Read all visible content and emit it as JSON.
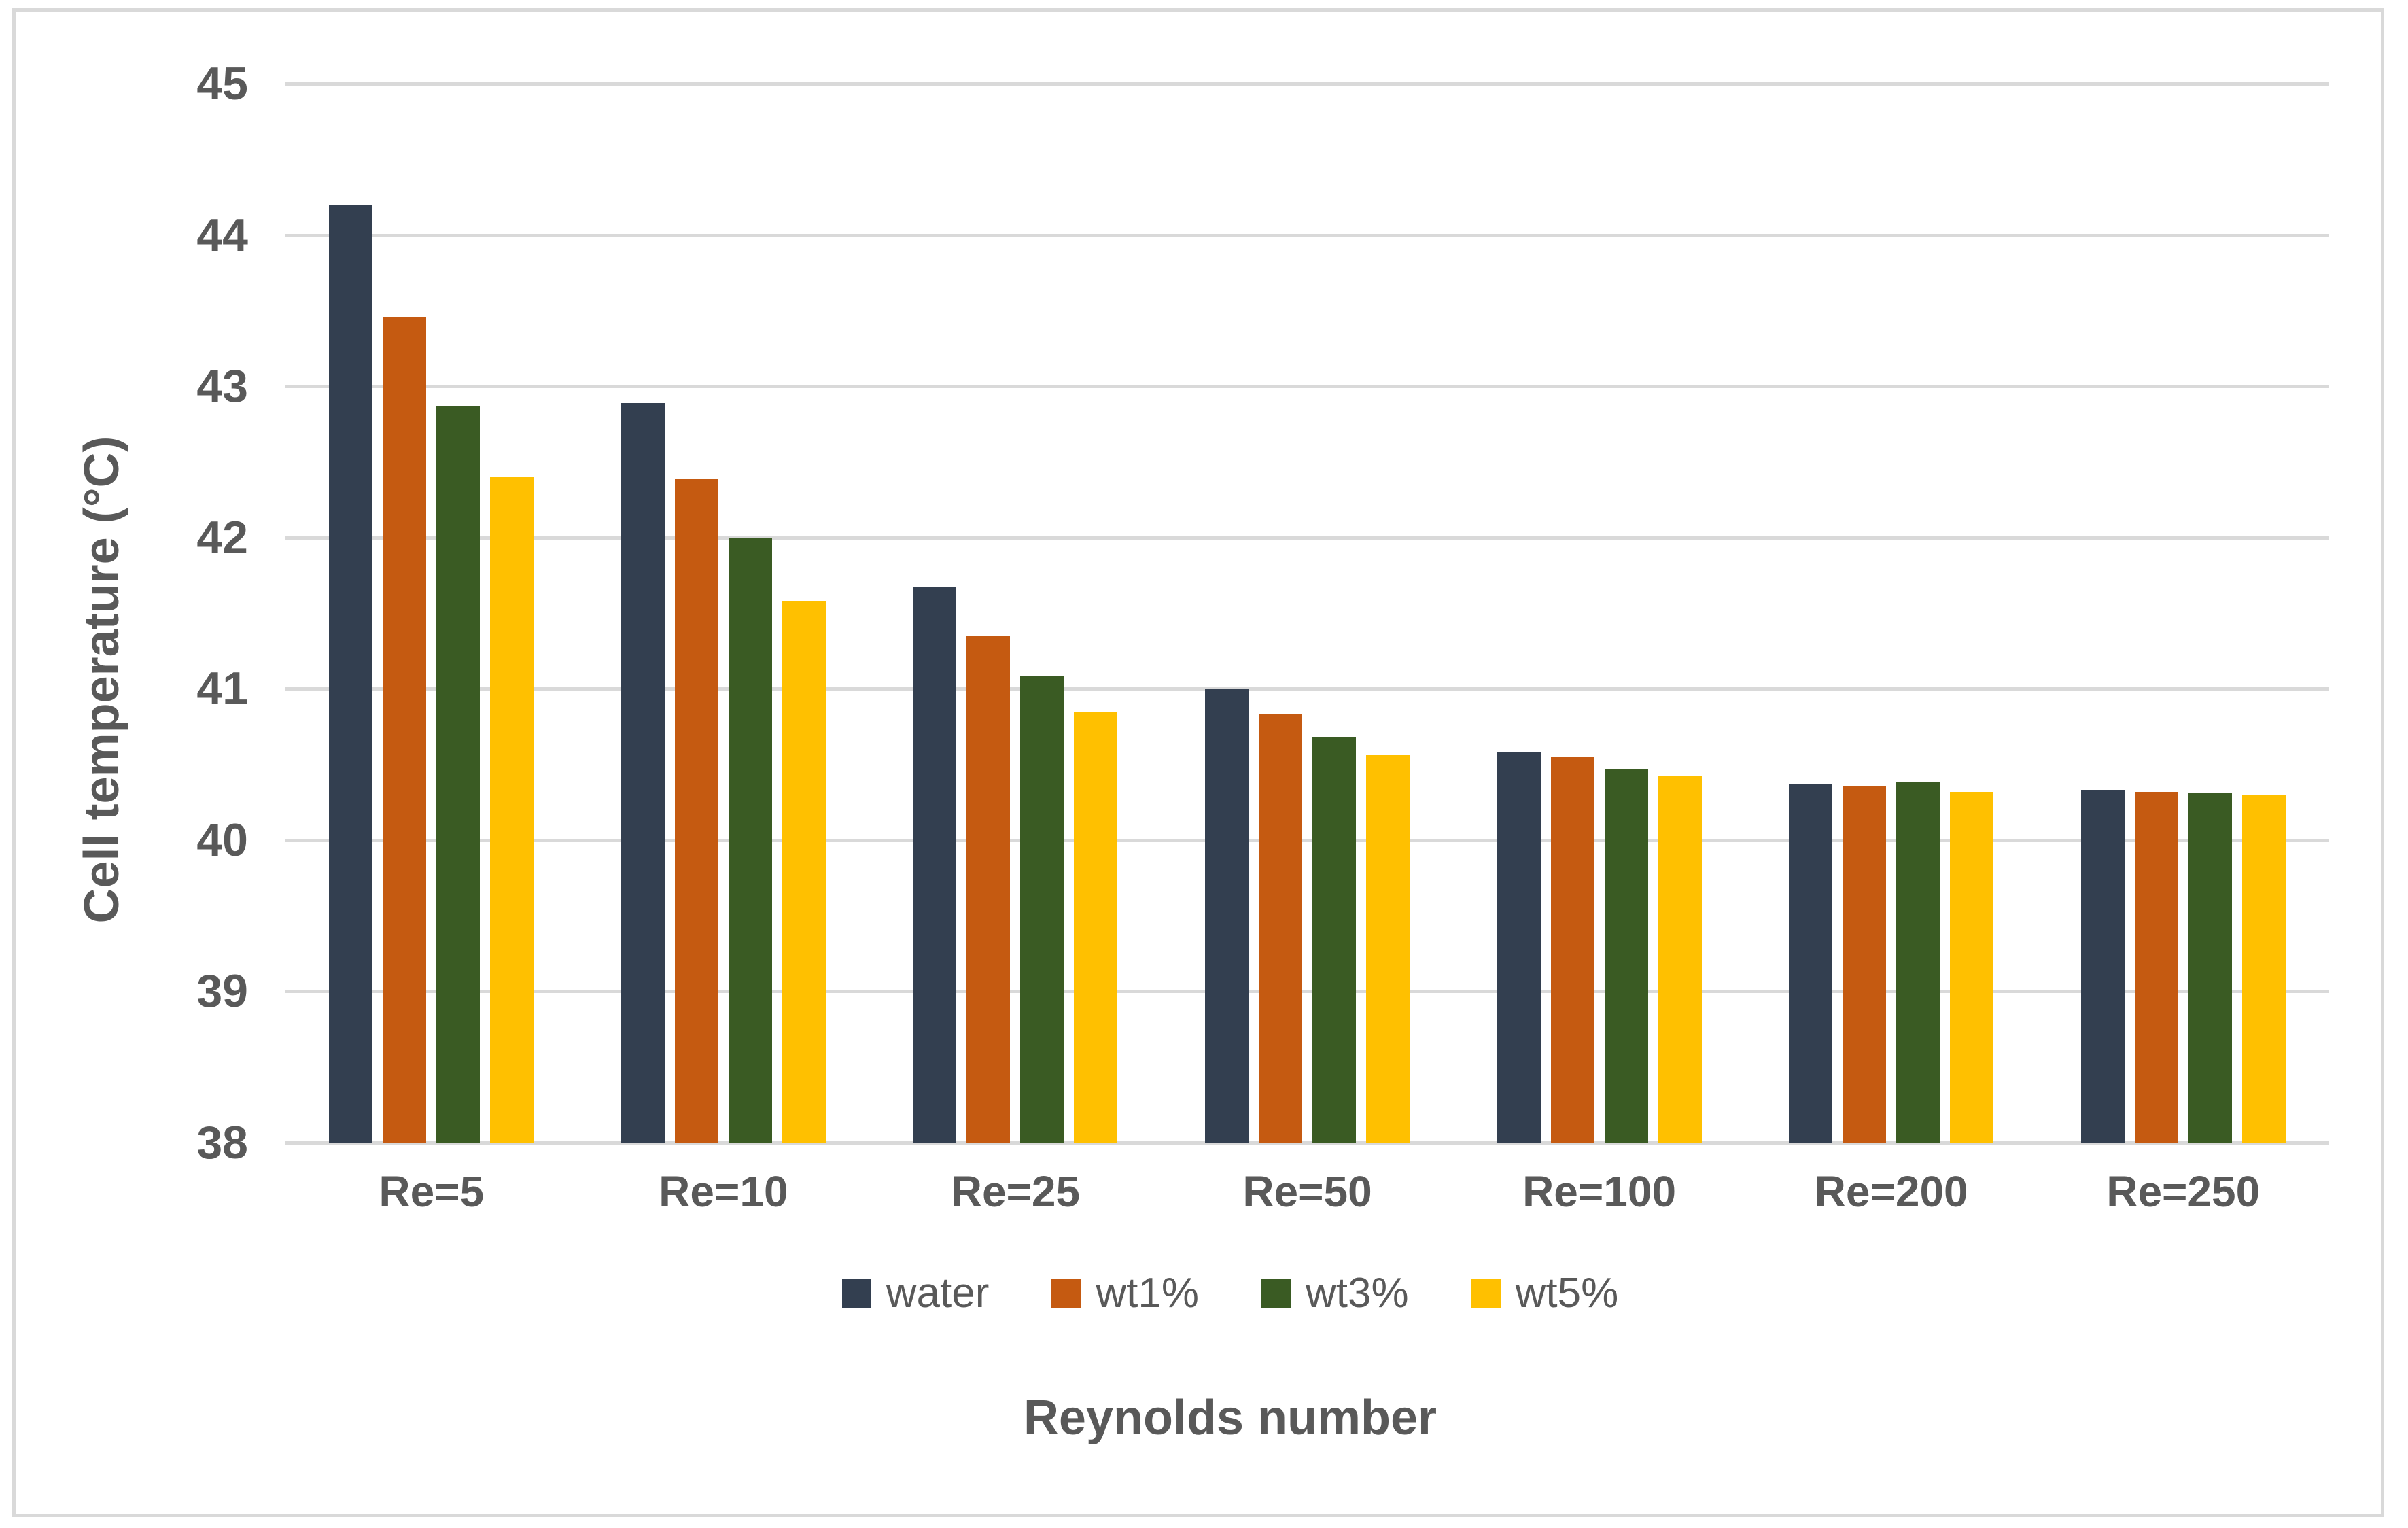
{
  "chart_data": {
    "type": "bar",
    "title": "",
    "xlabel": "Reynolds number",
    "ylabel": "Cell temperature (°C)",
    "categories": [
      "Re=5",
      "Re=10",
      "Re=25",
      "Re=50",
      "Re=100",
      "Re=200",
      "Re=250"
    ],
    "series": [
      {
        "name": "water",
        "color": "#333F50",
        "values": [
          44.2,
          42.89,
          41.67,
          41.0,
          40.58,
          40.37,
          40.33
        ]
      },
      {
        "name": "wt1%",
        "color": "#C55A11",
        "values": [
          43.46,
          42.39,
          41.35,
          40.83,
          40.55,
          40.36,
          40.32
        ]
      },
      {
        "name": "wt3%",
        "color": "#3A5B23",
        "values": [
          42.87,
          42.0,
          41.08,
          40.68,
          40.47,
          40.38,
          40.31
        ]
      },
      {
        "name": "wt5%",
        "color": "#FFC000",
        "values": [
          42.4,
          41.58,
          40.85,
          40.56,
          40.42,
          40.32,
          40.3
        ]
      }
    ],
    "ylim": [
      38,
      45
    ],
    "yticks": [
      38,
      39,
      40,
      41,
      42,
      43,
      44,
      45
    ],
    "grid": true,
    "legend_position": "bottom-center",
    "legend_labels": [
      "water",
      "wt1%",
      "wt3%",
      "wt5%"
    ],
    "colors": {
      "text": "#595959",
      "gridline": "#D9D9D9",
      "border": "#D9D9D9",
      "background": "#FFFFFF"
    }
  }
}
